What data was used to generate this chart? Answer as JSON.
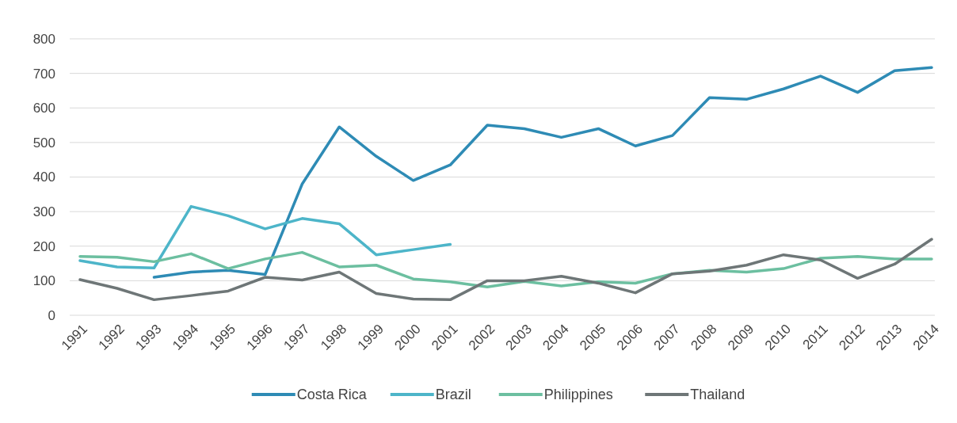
{
  "chart_data": {
    "type": "line",
    "categories": [
      "1991",
      "1992",
      "1993",
      "1994",
      "1995",
      "1996",
      "1997",
      "1998",
      "1999",
      "2000",
      "2001",
      "2002",
      "2003",
      "2004",
      "2005",
      "2006",
      "2007",
      "2008",
      "2009",
      "2010",
      "2011",
      "2012",
      "2013",
      "2014"
    ],
    "ylim": [
      0,
      800
    ],
    "yticks": [
      0,
      100,
      200,
      300,
      400,
      500,
      600,
      700,
      800
    ],
    "grid": "y",
    "legend": "bottom",
    "marker": "none",
    "line_style": "solid",
    "series": [
      {
        "name": "Costa Rica",
        "color": "#2e8bb5",
        "values": [
          null,
          null,
          110,
          125,
          130,
          118,
          380,
          545,
          460,
          390,
          435,
          550,
          540,
          515,
          540,
          490,
          520,
          630,
          625,
          655,
          692,
          645,
          708,
          717
        ]
      },
      {
        "name": "Brazil",
        "color": "#4db5c9",
        "values": [
          158,
          140,
          137,
          315,
          288,
          250,
          280,
          265,
          175,
          190,
          205,
          null,
          null,
          null,
          null,
          null,
          null,
          null,
          null,
          null,
          null,
          null,
          null,
          null
        ]
      },
      {
        "name": "Philippines",
        "color": "#6cbfa0",
        "values": [
          170,
          168,
          155,
          178,
          135,
          163,
          182,
          140,
          145,
          105,
          97,
          82,
          98,
          85,
          97,
          93,
          120,
          130,
          125,
          135,
          165,
          170,
          163,
          163
        ]
      },
      {
        "name": "Thailand",
        "color": "#6e7677",
        "values": [
          103,
          78,
          45,
          57,
          70,
          110,
          102,
          125,
          63,
          47,
          45,
          100,
          100,
          113,
          93,
          65,
          120,
          128,
          145,
          175,
          160,
          107,
          148,
          220
        ]
      }
    ]
  }
}
